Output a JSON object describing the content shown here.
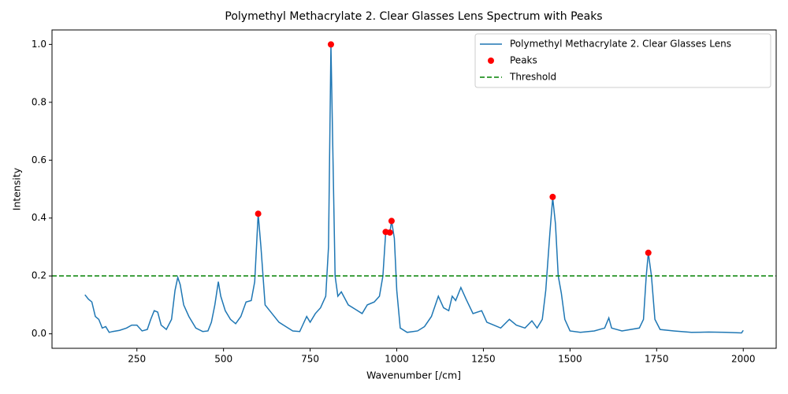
{
  "chart_data": {
    "type": "line",
    "title": "Polymethyl Methacrylate 2. Clear Glasses Lens Spectrum with Peaks",
    "x_label": "Wavenumber [/cm]",
    "y_label": "Intensity",
    "xlim": [
      5,
      2095
    ],
    "ylim": [
      -0.05,
      1.05
    ],
    "xticks": [
      250,
      500,
      750,
      1000,
      1250,
      1500,
      1750,
      2000
    ],
    "yticks": [
      {
        "value": 0,
        "label": "0.0"
      },
      0.2,
      0.4,
      0.6,
      0.8,
      {
        "value": 1,
        "label": "1.0"
      }
    ],
    "legend": "upper right",
    "series": [
      {
        "name": "Polymethyl Methacrylate 2. Clear Glasses Lens",
        "type": "line",
        "color": "#1f77b4",
        "x": [
          100,
          110,
          120,
          130,
          140,
          150,
          160,
          170,
          180,
          200,
          220,
          235,
          250,
          265,
          280,
          290,
          300,
          310,
          320,
          335,
          350,
          360,
          368,
          375,
          385,
          400,
          420,
          440,
          455,
          465,
          475,
          485,
          492,
          505,
          520,
          535,
          550,
          565,
          580,
          590,
          600,
          608,
          620,
          640,
          660,
          680,
          700,
          720,
          740,
          750,
          765,
          780,
          795,
          803,
          810,
          816,
          822,
          830,
          840,
          860,
          880,
          900,
          915,
          935,
          950,
          960,
          968,
          975,
          980,
          985,
          993,
          1000,
          1010,
          1030,
          1060,
          1080,
          1100,
          1120,
          1135,
          1150,
          1160,
          1170,
          1185,
          1200,
          1220,
          1245,
          1260,
          1280,
          1300,
          1325,
          1345,
          1370,
          1390,
          1405,
          1420,
          1430,
          1442,
          1450,
          1458,
          1466,
          1475,
          1485,
          1500,
          1530,
          1570,
          1600,
          1612,
          1620,
          1650,
          1700,
          1712,
          1720,
          1726,
          1735,
          1745,
          1760,
          1800,
          1850,
          1900,
          1950,
          1995,
          2000
        ],
        "values": [
          0.135,
          0.12,
          0.11,
          0.06,
          0.05,
          0.02,
          0.025,
          0.005,
          0.008,
          0.012,
          0.02,
          0.03,
          0.03,
          0.01,
          0.015,
          0.05,
          0.08,
          0.075,
          0.03,
          0.015,
          0.05,
          0.15,
          0.195,
          0.17,
          0.1,
          0.06,
          0.02,
          0.008,
          0.01,
          0.04,
          0.1,
          0.18,
          0.13,
          0.08,
          0.05,
          0.035,
          0.06,
          0.11,
          0.115,
          0.18,
          0.415,
          0.3,
          0.1,
          0.07,
          0.04,
          0.025,
          0.01,
          0.008,
          0.06,
          0.04,
          0.07,
          0.09,
          0.13,
          0.3,
          0.998,
          0.6,
          0.2,
          0.13,
          0.145,
          0.1,
          0.085,
          0.07,
          0.1,
          0.11,
          0.13,
          0.2,
          0.35,
          0.352,
          0.35,
          0.39,
          0.33,
          0.15,
          0.02,
          0.005,
          0.01,
          0.025,
          0.06,
          0.13,
          0.09,
          0.08,
          0.13,
          0.115,
          0.16,
          0.12,
          0.07,
          0.08,
          0.04,
          0.03,
          0.02,
          0.05,
          0.03,
          0.02,
          0.045,
          0.02,
          0.05,
          0.15,
          0.35,
          0.47,
          0.38,
          0.2,
          0.14,
          0.05,
          0.01,
          0.005,
          0.01,
          0.02,
          0.055,
          0.02,
          0.01,
          0.02,
          0.05,
          0.2,
          0.28,
          0.2,
          0.05,
          0.015,
          0.01,
          0.005,
          0.006,
          0.005,
          0.003,
          0.012
        ]
      },
      {
        "name": "Peaks",
        "type": "scatter",
        "color": "red",
        "x": [
          600,
          810,
          968,
          980,
          985,
          1450,
          1726
        ],
        "values": [
          0.415,
          1.0,
          0.352,
          0.35,
          0.39,
          0.473,
          0.28
        ]
      },
      {
        "name": "Threshold",
        "type": "hline",
        "color": "green",
        "value": 0.2
      }
    ]
  }
}
